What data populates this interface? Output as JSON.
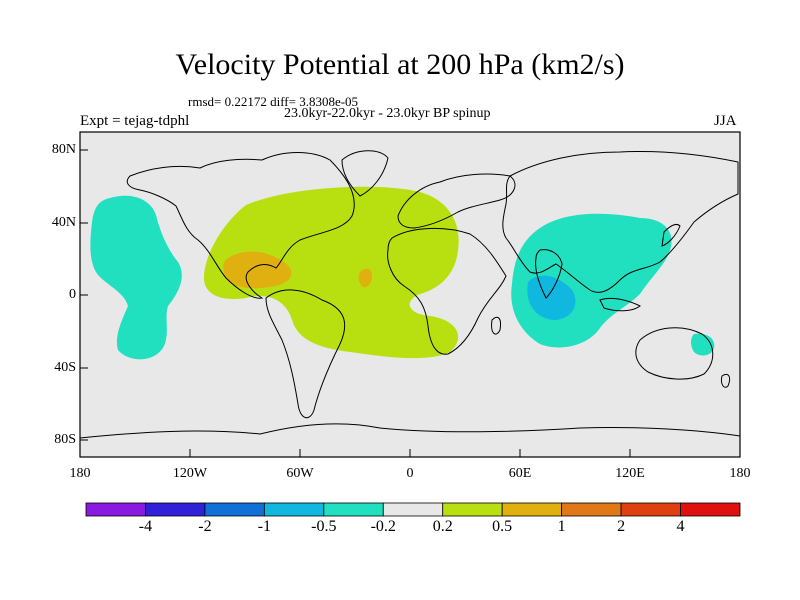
{
  "title": "Velocity Potential at 200 hPa (km2/s)",
  "stats_line": "rmsd= 0.22172 diff= 3.8308e-05",
  "subtitle": "23.0kyr-22.0kyr - 23.0kyr BP spinup",
  "left_label": "Expt = tejag-tdphl",
  "right_label": "JJA",
  "y_axis": {
    "ticks": [
      "80N",
      "40N",
      "0",
      "40S",
      "80S"
    ]
  },
  "x_axis": {
    "ticks": [
      "180",
      "120W",
      "60W",
      "0",
      "60E",
      "120E",
      "180"
    ]
  },
  "colorbar": {
    "colors": [
      "#8b1ae0",
      "#3020d8",
      "#1070d8",
      "#10b8e0",
      "#20e0c0",
      "#e8e8e8",
      "#b8e010",
      "#e0b010",
      "#e07818",
      "#e04010",
      "#e01010"
    ],
    "labels": [
      "-4",
      "-2",
      "-1",
      "-0.5",
      "-0.2",
      "0.2",
      "0.5",
      "1",
      "2",
      "4"
    ]
  },
  "fill_colors": {
    "land_ocean_background": "#e8e8e8",
    "negative_weak": "#20e0c0",
    "negative_moderate": "#10b8e0",
    "positive_weak": "#b8e010",
    "positive_moderate": "#e0b010"
  }
}
